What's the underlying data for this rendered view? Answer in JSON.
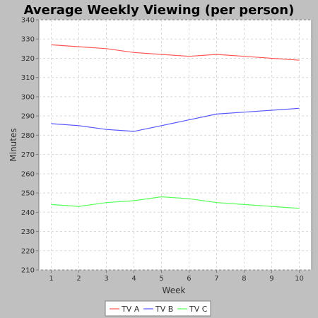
{
  "chart_data": {
    "type": "line",
    "title": "Average Weekly Viewing (per person)",
    "xlabel": "Week",
    "ylabel": "Minutes",
    "x": [
      1,
      2,
      3,
      4,
      5,
      6,
      7,
      8,
      9,
      10
    ],
    "xlim": [
      0.55,
      10.45
    ],
    "ylim": [
      210,
      340
    ],
    "y_ticks": [
      210,
      220,
      230,
      240,
      250,
      260,
      270,
      280,
      290,
      300,
      310,
      320,
      330,
      340
    ],
    "grid": true,
    "legend_position": "bottom",
    "series": [
      {
        "name": "TV A",
        "color": "#ff5555",
        "values": [
          327,
          326,
          325,
          323,
          322,
          321,
          322,
          321,
          320,
          319
        ]
      },
      {
        "name": "TV B",
        "color": "#5555ff",
        "values": [
          286,
          285,
          283,
          282,
          285,
          288,
          291,
          292,
          293,
          294
        ]
      },
      {
        "name": "TV C",
        "color": "#55ff55",
        "values": [
          244,
          243,
          245,
          246,
          248,
          247,
          245,
          244,
          243,
          242
        ]
      }
    ]
  },
  "colors": {
    "background": "#c0c0c0",
    "plot_background": "#ffffff",
    "gridline": "#d9d9d9"
  }
}
